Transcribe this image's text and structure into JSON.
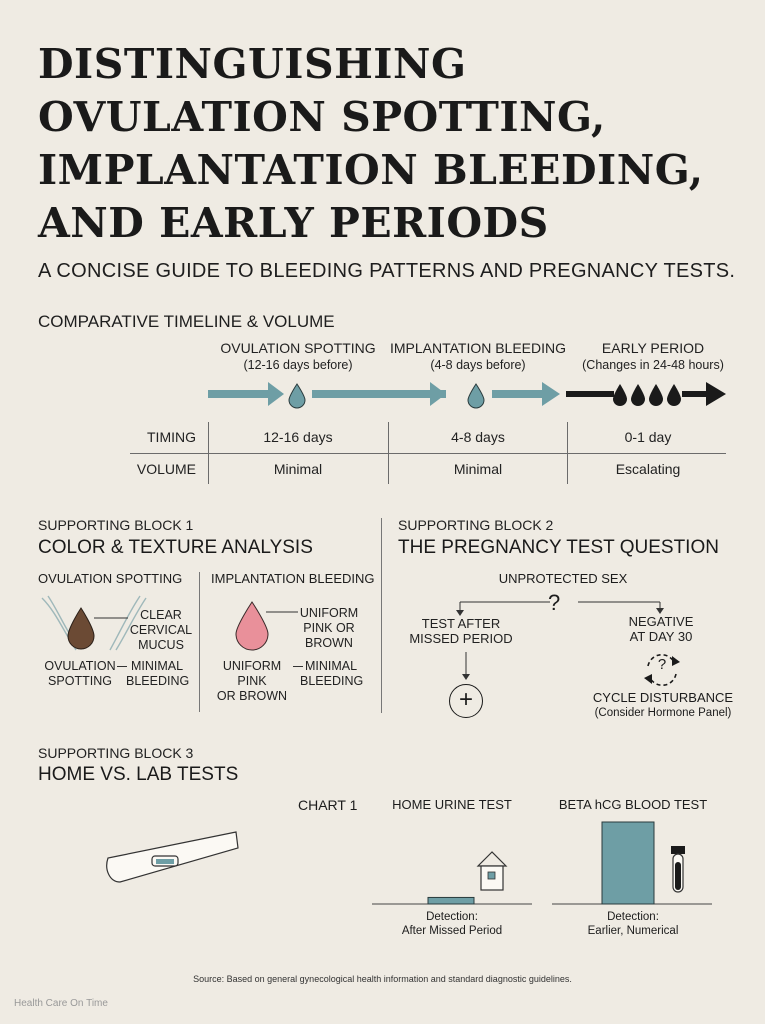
{
  "title": {
    "line1": "DISTINGUISHING",
    "line2": "OVULATION SPOTTING,",
    "line3": "IMPLANTATION BLEEDING,",
    "line4": "AND EARLY PERIODS"
  },
  "subtitle": "A CONCISE GUIDE TO BLEEDING PATTERNS AND PREGNANCY TESTS.",
  "timeline": {
    "heading": "COMPARATIVE TIMELINE & VOLUME",
    "phases": [
      {
        "name": "OVULATION SPOTTING",
        "sub": "(12-16 days before)",
        "timing": "12-16 days",
        "volume": "Minimal"
      },
      {
        "name": "IMPLANTATION BLEEDING",
        "sub": "(4-8 days before)",
        "timing": "4-8 days",
        "volume": "Minimal"
      },
      {
        "name": "EARLY PERIOD",
        "sub": "(Changes in 24-48 hours)",
        "timing": "0-1 day",
        "volume": "Escalating"
      }
    ],
    "row_timing": "TIMING",
    "row_volume": "VOLUME",
    "colors": {
      "teal": "#6e9ea5",
      "dark": "#1a1a1a"
    }
  },
  "block1": {
    "label": "SUPPORTING BLOCK 1",
    "title": "COLOR & TEXTURE ANALYSIS",
    "col1_head": "OVULATION SPOTTING",
    "col1_callout_line1": "CLEAR",
    "col1_callout_line2": "CERVICAL",
    "col1_callout_line3": "MUCUS",
    "col1_left_line1": "OVULATION",
    "col1_left_line2": "SPOTTING",
    "col1_right_line1": "MINIMAL",
    "col1_right_line2": "BLEEDING",
    "col2_head": "IMPLANTATION BLEEDING",
    "col2_callout_line1": "UNIFORM",
    "col2_callout_line2": "PINK OR",
    "col2_callout_line3": "BROWN",
    "col2_left_line1": "UNIFORM PINK",
    "col2_left_line2": "OR BROWN",
    "col2_right_line1": "MINIMAL",
    "col2_right_line2": "BLEEDING",
    "colors": {
      "brown_drop": "#6b4a34",
      "pink_drop": "#e9909a"
    }
  },
  "block2": {
    "label": "SUPPORTING BLOCK 2",
    "title": "THE PREGNANCY TEST QUESTION",
    "top": "UNPROTECTED SEX",
    "question": "?",
    "left_line1": "TEST AFTER",
    "left_line2": "MISSED PERIOD",
    "right_line1": "NEGATIVE",
    "right_line2": "AT DAY 30",
    "result_left": "+",
    "result_right": "CYCLE DISTURBANCE",
    "result_right_sub": "(Consider Hormone Panel)",
    "cycle_mark": "?"
  },
  "block3": {
    "label": "SUPPORTING BLOCK 3",
    "title": "HOME VS. LAB TESTS",
    "chart_label": "CHART 1",
    "home_title": "HOME URINE TEST",
    "home_caption_line1": "Detection:",
    "home_caption_line2": "After Missed Period",
    "lab_title": "BETA hCG BLOOD TEST",
    "lab_caption_line1": "Detection:",
    "lab_caption_line2": "Earlier, Numerical"
  },
  "chart_data": {
    "type": "bar",
    "categories": [
      "HOME URINE TEST",
      "BETA hCG BLOOD TEST"
    ],
    "values": [
      8,
      100
    ],
    "title": "CHART 1",
    "xlabel": "",
    "ylabel": "",
    "ylim": [
      0,
      100
    ],
    "colors": [
      "#6e9ea5",
      "#6e9ea5"
    ]
  },
  "footer": {
    "source": "Source: Based on general gynecological health information and standard diagnostic guidelines.",
    "brand": "Health Care On Time"
  }
}
